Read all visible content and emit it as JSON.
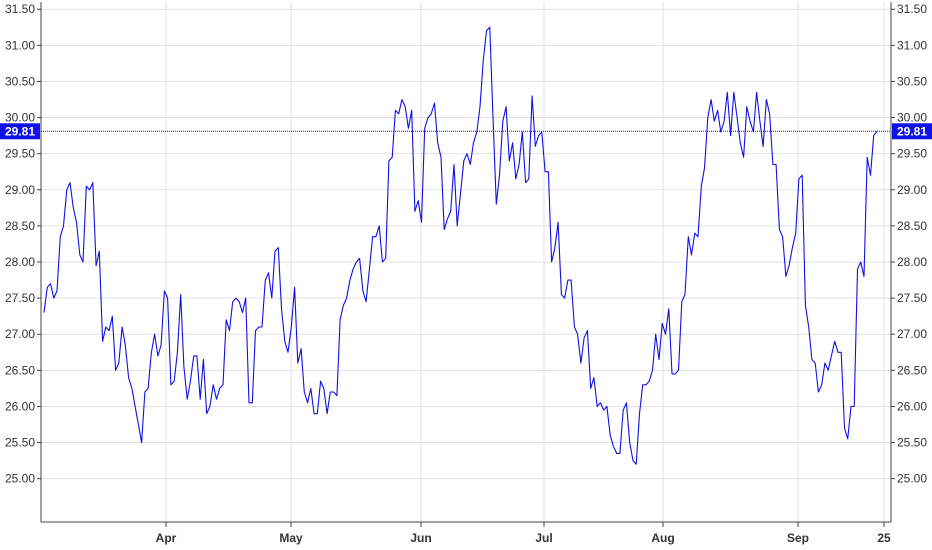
{
  "chart_data": {
    "type": "line",
    "title": "",
    "xlabel": "",
    "ylabel": "",
    "ylim": [
      24.4,
      31.6
    ],
    "x_tick_labels": [
      "Apr",
      "May",
      "Jun",
      "Jul",
      "Aug",
      "Sep",
      "25"
    ],
    "y_tick_labels": [
      "25.00",
      "25.50",
      "26.00",
      "26.50",
      "27.00",
      "27.50",
      "28.00",
      "28.50",
      "29.00",
      "29.50",
      "30.00",
      "30.50",
      "31.00",
      "31.50"
    ],
    "y_ticks": [
      25.0,
      25.5,
      26.0,
      26.5,
      27.0,
      27.5,
      28.0,
      28.5,
      29.0,
      29.5,
      30.0,
      30.5,
      31.0,
      31.5
    ],
    "grid": true,
    "y_axis_sides": "both",
    "last_value": 29.81,
    "last_value_label": "29.81",
    "line_color": "#1010e8",
    "label_bg_color": "#1010e8",
    "series": [
      {
        "values": [
          27.3,
          27.65,
          27.7,
          27.5,
          27.6,
          28.35,
          28.5,
          29.0,
          29.1,
          28.75,
          28.55,
          28.1,
          28.0,
          29.05,
          29.0,
          29.1,
          27.95,
          28.15,
          26.9,
          27.1,
          27.05,
          27.25,
          26.5,
          26.6,
          27.1,
          26.85,
          26.4,
          26.25,
          26.0,
          25.75,
          25.5,
          26.2,
          26.25,
          26.75,
          27.0,
          26.7,
          26.85,
          27.6,
          27.5,
          26.3,
          26.35,
          26.75,
          27.55,
          26.55,
          26.1,
          26.35,
          26.7,
          26.7,
          26.1,
          26.65,
          25.9,
          26.0,
          26.3,
          26.1,
          26.25,
          26.3,
          27.2,
          27.05,
          27.45,
          27.5,
          27.45,
          27.3,
          27.5,
          26.05,
          26.05,
          27.05,
          27.1,
          27.1,
          27.75,
          27.85,
          27.5,
          28.15,
          28.2,
          27.35,
          26.9,
          26.75,
          27.1,
          27.65,
          26.6,
          26.8,
          26.2,
          26.05,
          26.25,
          25.9,
          25.9,
          26.35,
          26.25,
          25.9,
          26.2,
          26.2,
          26.15,
          27.2,
          27.4,
          27.5,
          27.75,
          27.9,
          28.0,
          28.05,
          27.6,
          27.45,
          27.9,
          28.35,
          28.35,
          28.5,
          28.0,
          28.05,
          29.4,
          29.45,
          30.1,
          30.05,
          30.25,
          30.15,
          29.85,
          30.1,
          28.7,
          28.85,
          28.55,
          29.85,
          30.0,
          30.05,
          30.2,
          29.65,
          29.45,
          28.45,
          28.6,
          28.7,
          29.35,
          28.5,
          28.95,
          29.4,
          29.5,
          29.35,
          29.65,
          29.8,
          30.15,
          30.8,
          31.2,
          31.25,
          30.0,
          28.8,
          29.2,
          29.95,
          30.15,
          29.4,
          29.65,
          29.15,
          29.35,
          29.8,
          29.1,
          29.15,
          30.3,
          29.6,
          29.75,
          29.8,
          29.25,
          29.25,
          28.0,
          28.2,
          28.55,
          27.55,
          27.5,
          27.75,
          27.75,
          27.1,
          27.0,
          26.6,
          26.95,
          27.05,
          26.25,
          26.4,
          26.0,
          26.05,
          25.95,
          26.0,
          25.6,
          25.45,
          25.35,
          25.35,
          25.95,
          26.05,
          25.5,
          25.25,
          25.2,
          25.9,
          26.3,
          26.3,
          26.35,
          26.5,
          27.0,
          26.65,
          27.15,
          27.0,
          27.35,
          26.45,
          26.45,
          26.5,
          27.45,
          27.55,
          28.35,
          28.1,
          28.4,
          28.35,
          29.05,
          29.3,
          30.0,
          30.25,
          29.95,
          30.1,
          29.8,
          29.95,
          30.35,
          29.75,
          30.35,
          30.0,
          29.65,
          29.45,
          30.15,
          29.95,
          29.8,
          30.35,
          29.95,
          29.6,
          30.25,
          30.05,
          29.35,
          29.35,
          28.45,
          28.35,
          27.8,
          27.95,
          28.2,
          28.4,
          29.15,
          29.2,
          27.4,
          27.1,
          26.65,
          26.6,
          26.2,
          26.3,
          26.6,
          26.5,
          26.7,
          26.9,
          26.75,
          26.75,
          25.7,
          25.55,
          26.0,
          26.0,
          27.9,
          28.0,
          27.8,
          29.45,
          29.2,
          29.75,
          29.81
        ]
      }
    ]
  }
}
